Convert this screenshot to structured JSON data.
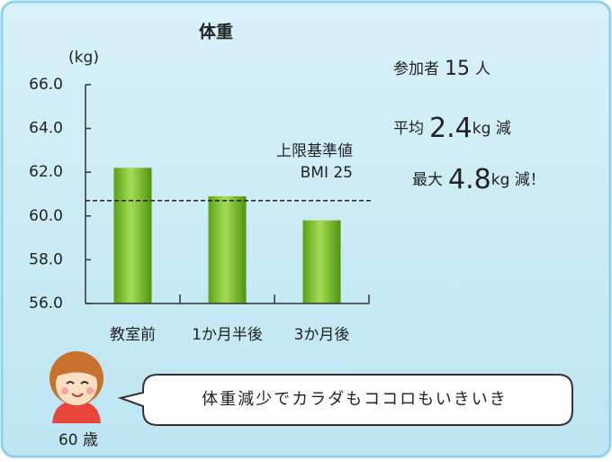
{
  "chart_data": {
    "type": "bar",
    "title": "体重",
    "y_label": "(kg)",
    "categories": [
      "教室前",
      "1か月半後",
      "3か月後"
    ],
    "values": [
      62.2,
      60.9,
      59.8
    ],
    "color": "#7cc22a",
    "ylim": [
      56,
      66
    ],
    "yticks": [
      {
        "value": 56,
        "label": "56.0"
      },
      {
        "value": 58,
        "label": "58.0"
      },
      {
        "value": 60,
        "label": "60.0"
      },
      {
        "value": 62,
        "label": "62.0"
      },
      {
        "value": 64,
        "label": "64.0"
      },
      {
        "value": 66,
        "label": "66.0"
      }
    ],
    "reference_line": {
      "value": 60.7,
      "label": [
        "上限基準値",
        "BMI 25"
      ]
    }
  },
  "stats": [
    {
      "label": "参加者",
      "value": 15,
      "unit": "人"
    },
    {
      "label": "平均",
      "value": 2.4,
      "unit": "kg 減"
    },
    {
      "label": "最大",
      "value": 4.8,
      "unit": "kg 減！"
    }
  ],
  "bubble_text": "体重減少でカラダもココロもいきいき",
  "person_age": "60 歳"
}
